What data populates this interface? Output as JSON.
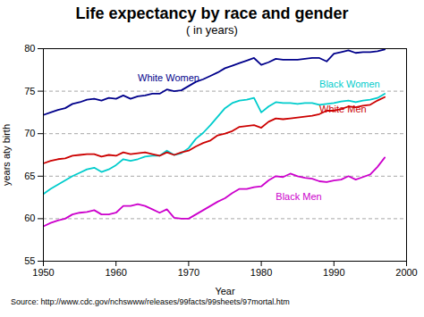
{
  "chart_data": {
    "type": "line",
    "title": "Life expectancy by race and gender",
    "subtitle": "( in years)",
    "xlabel": "Year",
    "ylabel": "years aty birth",
    "source": "Source: http://www.cdc.gov/nchswww/releases/99facts/99sheets/97mortal.htm",
    "xlim": [
      1950,
      2000
    ],
    "ylim": [
      55,
      80
    ],
    "xticks": [
      1950,
      1960,
      1970,
      1980,
      1990,
      2000
    ],
    "yticks": [
      55,
      60,
      65,
      70,
      75,
      80
    ],
    "grid": "y",
    "x": [
      1950,
      1951,
      1952,
      1953,
      1954,
      1955,
      1956,
      1957,
      1958,
      1959,
      1960,
      1961,
      1962,
      1963,
      1964,
      1965,
      1966,
      1967,
      1968,
      1969,
      1970,
      1971,
      1972,
      1973,
      1974,
      1975,
      1976,
      1977,
      1978,
      1979,
      1980,
      1981,
      1982,
      1983,
      1984,
      1985,
      1986,
      1987,
      1988,
      1989,
      1990,
      1991,
      1992,
      1993,
      1994,
      1995,
      1996,
      1997
    ],
    "series": [
      {
        "name": "White Women",
        "color": "#00008B",
        "values": [
          72.2,
          72.5,
          72.8,
          73.0,
          73.5,
          73.7,
          74.0,
          74.1,
          73.9,
          74.2,
          74.1,
          74.5,
          74.1,
          74.4,
          74.5,
          74.7,
          74.7,
          75.2,
          75.0,
          75.1,
          75.6,
          76.1,
          76.4,
          76.8,
          77.2,
          77.7,
          78.0,
          78.3,
          78.6,
          78.9,
          78.1,
          78.4,
          78.8,
          78.7,
          78.7,
          78.7,
          78.8,
          78.9,
          78.9,
          78.5,
          79.4,
          79.6,
          79.8,
          79.5,
          79.6,
          79.6,
          79.7,
          79.9
        ]
      },
      {
        "name": "Black Women",
        "color": "#00CCCC",
        "values": [
          62.9,
          63.5,
          64.0,
          64.5,
          65.0,
          65.4,
          65.8,
          66.0,
          65.5,
          65.8,
          66.3,
          67.0,
          66.8,
          67.0,
          67.3,
          67.4,
          67.4,
          68.0,
          67.5,
          67.7,
          68.3,
          69.4,
          70.1,
          71.0,
          72.0,
          73.0,
          73.6,
          73.9,
          74.0,
          74.2,
          72.5,
          73.2,
          73.7,
          73.6,
          73.6,
          73.5,
          73.6,
          73.6,
          73.4,
          73.5,
          73.6,
          73.8,
          73.9,
          73.7,
          73.9,
          74.0,
          74.2,
          74.7
        ]
      },
      {
        "name": "White Men",
        "color": "#CC0000",
        "values": [
          66.5,
          66.8,
          67.0,
          67.1,
          67.4,
          67.5,
          67.6,
          67.6,
          67.3,
          67.5,
          67.4,
          67.8,
          67.6,
          67.7,
          67.8,
          67.6,
          67.4,
          67.8,
          67.5,
          67.8,
          68.0,
          68.5,
          68.9,
          69.2,
          69.8,
          70.0,
          70.3,
          70.8,
          70.9,
          71.0,
          70.7,
          71.4,
          71.8,
          71.7,
          71.8,
          71.9,
          72.0,
          72.1,
          72.3,
          72.7,
          72.7,
          72.9,
          73.2,
          73.1,
          73.3,
          73.4,
          73.9,
          74.3
        ]
      },
      {
        "name": "Black Men",
        "color": "#CC00CC",
        "values": [
          59.1,
          59.5,
          59.8,
          60.0,
          60.5,
          60.7,
          60.8,
          61.0,
          60.5,
          60.5,
          60.7,
          61.5,
          61.5,
          61.7,
          61.5,
          61.1,
          60.7,
          61.1,
          60.1,
          60.0,
          60.0,
          60.5,
          61.0,
          61.5,
          62.0,
          62.4,
          63.0,
          63.5,
          63.5,
          63.7,
          63.8,
          64.5,
          65.0,
          64.9,
          65.3,
          65.0,
          64.8,
          64.7,
          64.4,
          64.3,
          64.5,
          64.6,
          65.0,
          64.6,
          64.9,
          65.2,
          66.1,
          67.2
        ]
      }
    ],
    "annotations": [
      {
        "text": "White Women",
        "x": 1963,
        "y": 76.2,
        "color": "#00008B"
      },
      {
        "text": "Black Women",
        "x": 1988,
        "y": 75.4,
        "color": "#00CCCC"
      },
      {
        "text": "White Men",
        "x": 1988,
        "y": 72.5,
        "color": "#CC0000"
      },
      {
        "text": "Black Men",
        "x": 1982,
        "y": 62.2,
        "color": "#CC00CC"
      }
    ]
  }
}
